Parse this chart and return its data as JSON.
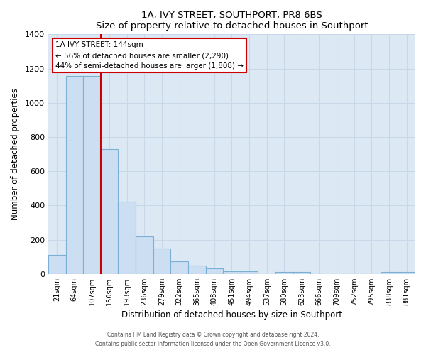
{
  "title": "1A, IVY STREET, SOUTHPORT, PR8 6BS",
  "subtitle": "Size of property relative to detached houses in Southport",
  "xlabel": "Distribution of detached houses by size in Southport",
  "ylabel": "Number of detached properties",
  "bar_color": "#ccdff2",
  "bar_edge_color": "#7bafd4",
  "plot_bg_color": "#dce9f5",
  "fig_bg_color": "#ffffff",
  "grid_color": "#c8d8e8",
  "categories": [
    "21sqm",
    "64sqm",
    "107sqm",
    "150sqm",
    "193sqm",
    "236sqm",
    "279sqm",
    "322sqm",
    "365sqm",
    "408sqm",
    "451sqm",
    "494sqm",
    "537sqm",
    "580sqm",
    "623sqm",
    "666sqm",
    "709sqm",
    "752sqm",
    "795sqm",
    "838sqm",
    "881sqm"
  ],
  "values": [
    110,
    1155,
    1155,
    730,
    420,
    220,
    150,
    75,
    50,
    30,
    15,
    15,
    0,
    10,
    10,
    0,
    0,
    0,
    0,
    10,
    10
  ],
  "ylim": [
    0,
    1400
  ],
  "yticks": [
    0,
    200,
    400,
    600,
    800,
    1000,
    1200,
    1400
  ],
  "red_line_x": 2.5,
  "annotation_line1": "1A IVY STREET: 144sqm",
  "annotation_line2": "← 56% of detached houses are smaller (2,290)",
  "annotation_line3": "44% of semi-detached houses are larger (1,808) →",
  "footer1": "Contains HM Land Registry data © Crown copyright and database right 2024.",
  "footer2": "Contains public sector information licensed under the Open Government Licence v3.0."
}
